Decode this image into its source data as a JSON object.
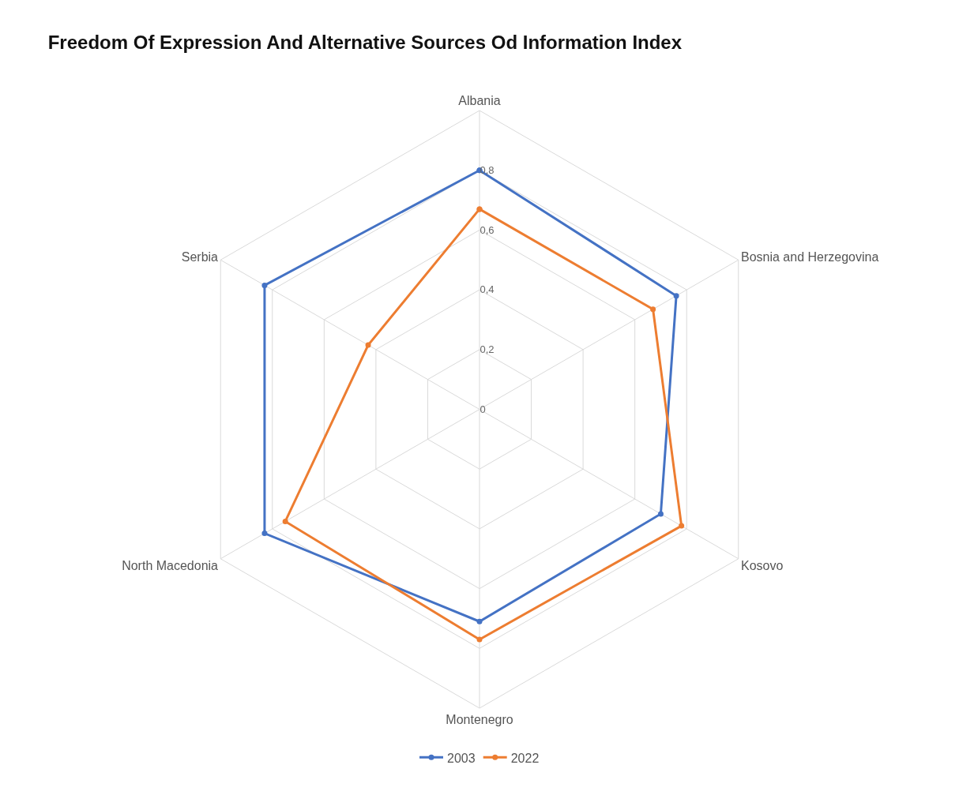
{
  "chart_data": {
    "type": "radar",
    "title": "Freedom Of Expression And Alternative Sources Od Information Index",
    "categories": [
      "Albania",
      "Bosnia and Herzegovina",
      "Kosovo",
      "Montenegro",
      "North Macedonia",
      "Serbia"
    ],
    "series": [
      {
        "name": "2003",
        "color": "#4472c4",
        "values": [
          0.8,
          0.76,
          0.7,
          0.71,
          0.83,
          0.83
        ]
      },
      {
        "name": "2022",
        "color": "#ed7d31",
        "values": [
          0.67,
          0.67,
          0.78,
          0.77,
          0.75,
          0.43
        ]
      }
    ],
    "ylim": [
      0,
      1
    ],
    "yticks": [
      0,
      {
        "value": 0.2,
        "label": "0,2"
      },
      {
        "value": 0.4,
        "label": "0,4"
      },
      {
        "value": 0.6,
        "label": "0,6"
      },
      {
        "value": 0.8,
        "label": "0,8"
      }
    ],
    "grid": true,
    "legend": "bottom",
    "marker": "circle",
    "line_style": "solid"
  }
}
